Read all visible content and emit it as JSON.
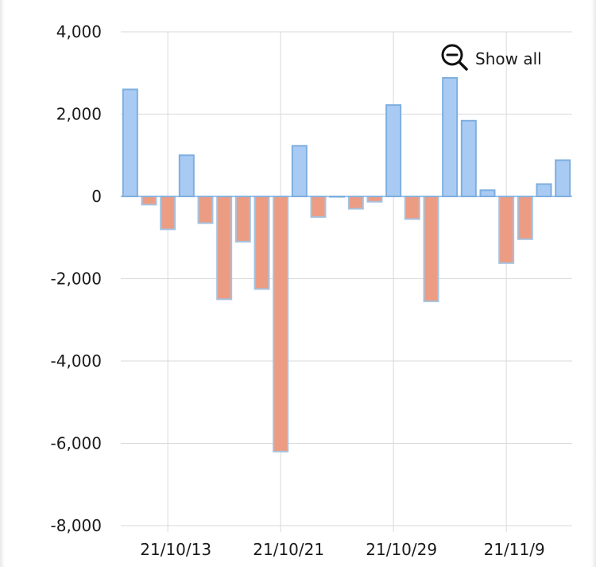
{
  "controls": {
    "show_all_label": "Show all",
    "show_all_icon": "zoom-out-icon"
  },
  "colors": {
    "positive_fill": "#a9cbf3",
    "positive_stroke": "#7eaedf",
    "negative_fill": "#ec9c83",
    "negative_stroke": "#a5c3e0",
    "grid": "#d9d9d9"
  },
  "chart_data": {
    "type": "bar",
    "title": "",
    "xlabel": "",
    "ylabel": "",
    "ylim": [
      -8000,
      4000
    ],
    "yticks": [
      4000,
      2000,
      0,
      -2000,
      -4000,
      -6000,
      -8000
    ],
    "ytick_labels": [
      "4,000",
      "2,000",
      "0",
      "-2,000",
      "-4,000",
      "-6,000",
      "-8,000"
    ],
    "xtick_labels": [
      "21/10/13",
      "21/10/21",
      "21/10/29",
      "21/11/9"
    ],
    "xtick_positions": [
      2,
      8,
      14,
      20
    ],
    "grid": true,
    "values": [
      2600,
      -200,
      -800,
      1000,
      -650,
      -2500,
      -1100,
      -2250,
      -6200,
      1230,
      -500,
      0,
      -300,
      -130,
      2220,
      -550,
      -2550,
      2880,
      1840,
      150,
      -1620,
      -1040,
      300,
      880
    ]
  }
}
